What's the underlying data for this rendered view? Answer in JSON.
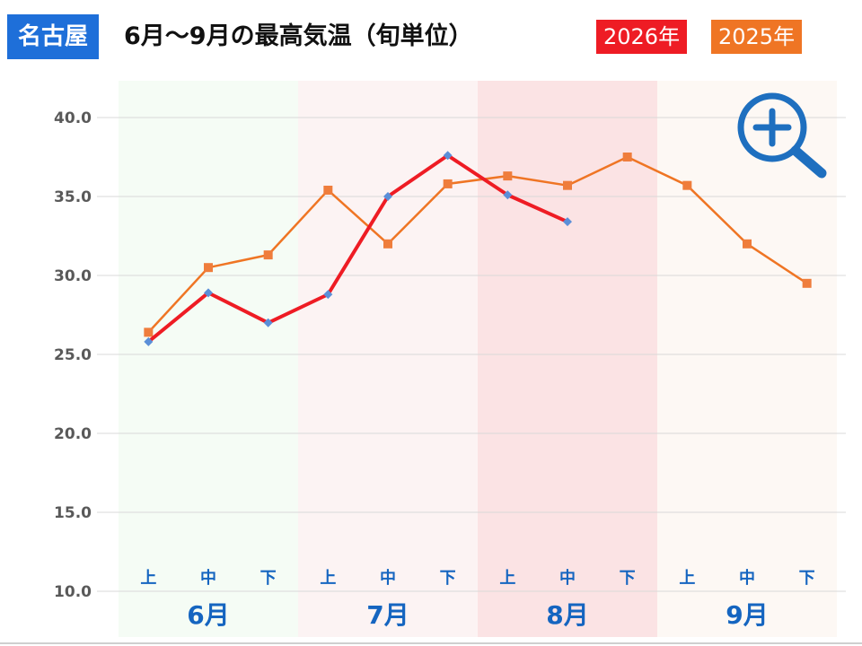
{
  "header": {
    "city": "名古屋",
    "title": "6月～9月の最高気温（旬単位）"
  },
  "legend": [
    {
      "label": "2026年",
      "color": "#ee1c24"
    },
    {
      "label": "2025年",
      "color": "#ef7524"
    }
  ],
  "icons": {
    "zoom": "zoom-in-icon"
  },
  "chart_data": {
    "type": "line",
    "months": [
      "6月",
      "7月",
      "8月",
      "9月"
    ],
    "month_bg_colors": [
      "#f5fcf5",
      "#fcf3f3",
      "#fbe3e4",
      "#fdf8f4"
    ],
    "categories": [
      "上",
      "中",
      "下",
      "上",
      "中",
      "下",
      "上",
      "中",
      "下",
      "上",
      "中",
      "下"
    ],
    "ylim": [
      10,
      40
    ],
    "yticks": [
      "10.0",
      "15.0",
      "20.0",
      "25.0",
      "30.0",
      "35.0",
      "40.0"
    ],
    "grid": true,
    "series": [
      {
        "name": "2026年",
        "color": "#ee1c24",
        "marker": "diamond",
        "values": [
          25.8,
          28.9,
          27.0,
          28.8,
          35.0,
          37.6,
          35.1,
          33.4,
          null,
          null,
          null,
          null
        ]
      },
      {
        "name": "2025年",
        "color": "#ef7524",
        "marker": "square",
        "values": [
          26.4,
          30.5,
          31.3,
          35.4,
          32.0,
          35.8,
          36.3,
          35.7,
          37.5,
          35.7,
          32.0,
          29.5
        ]
      }
    ]
  }
}
